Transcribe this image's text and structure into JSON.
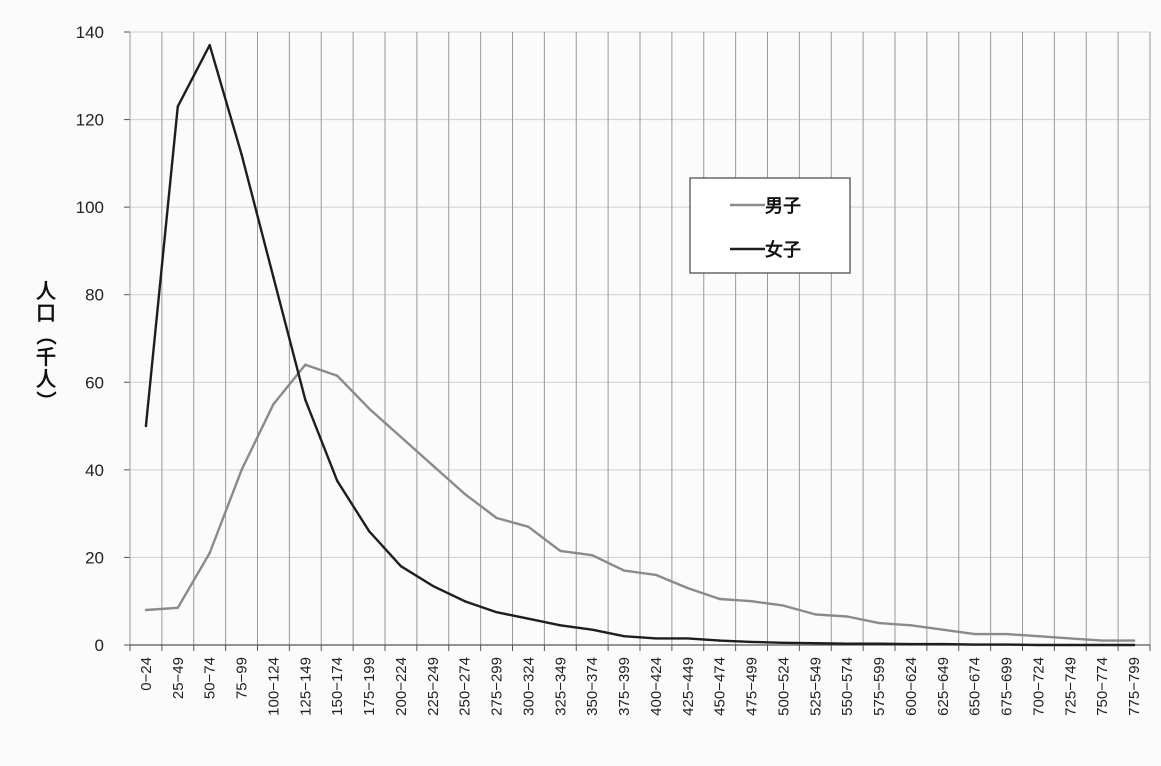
{
  "chart_data": {
    "type": "line",
    "ylabel": "人口（千人）",
    "ylim": [
      0,
      140
    ],
    "yticks": [
      0,
      20,
      40,
      60,
      80,
      100,
      120,
      140
    ],
    "categories": [
      "0−24",
      "25−49",
      "50−74",
      "75−99",
      "100−124",
      "125−149",
      "150−174",
      "175−199",
      "200−224",
      "225−249",
      "250−274",
      "275−299",
      "300−324",
      "325−349",
      "350−374",
      "375−399",
      "400−424",
      "425−449",
      "450−474",
      "475−499",
      "500−524",
      "525−549",
      "550−574",
      "575−599",
      "600−624",
      "625−649",
      "650−674",
      "675−699",
      "700−724",
      "725−749",
      "750−774",
      "775−799"
    ],
    "series": [
      {
        "name": "男子",
        "color": "#8a8a8a",
        "values": [
          8,
          8.5,
          21,
          40,
          55,
          64,
          61.5,
          54,
          47.5,
          41,
          34.5,
          29,
          27,
          21.5,
          20.5,
          17,
          16,
          13,
          10.5,
          10,
          9,
          7,
          6.5,
          5,
          4.5,
          3.5,
          2.5,
          2.5,
          2,
          1.5,
          1,
          1
        ]
      },
      {
        "name": "女子",
        "color": "#1e1e1e",
        "values": [
          50,
          123,
          137,
          112,
          84,
          56,
          37.5,
          26,
          18,
          13.5,
          10,
          7.5,
          6,
          4.5,
          3.5,
          2,
          1.5,
          1.5,
          1,
          0.7,
          0.5,
          0.4,
          0.3,
          0.3,
          0.2,
          0.2,
          0.1,
          0.1,
          0,
          0,
          0,
          0
        ]
      }
    ],
    "legend": {
      "position": "upper-right",
      "entries": [
        "男子",
        "女子"
      ]
    },
    "grid": true
  }
}
